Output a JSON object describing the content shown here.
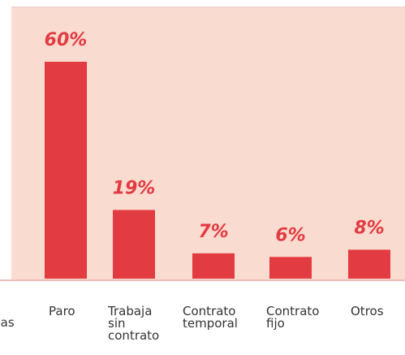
{
  "chart_data": {
    "type": "bar",
    "categories": [
      "onas es",
      "Paro",
      "Trabaja sin contrato",
      "Contrato temporal",
      "Contrato fijo",
      "Otros"
    ],
    "values": [
      null,
      60,
      19,
      7,
      6,
      8
    ],
    "value_labels": [
      null,
      "60%",
      "19%",
      "7%",
      "6%",
      "8%"
    ],
    "color": "#e33b42",
    "background": "#f9dbd0"
  }
}
